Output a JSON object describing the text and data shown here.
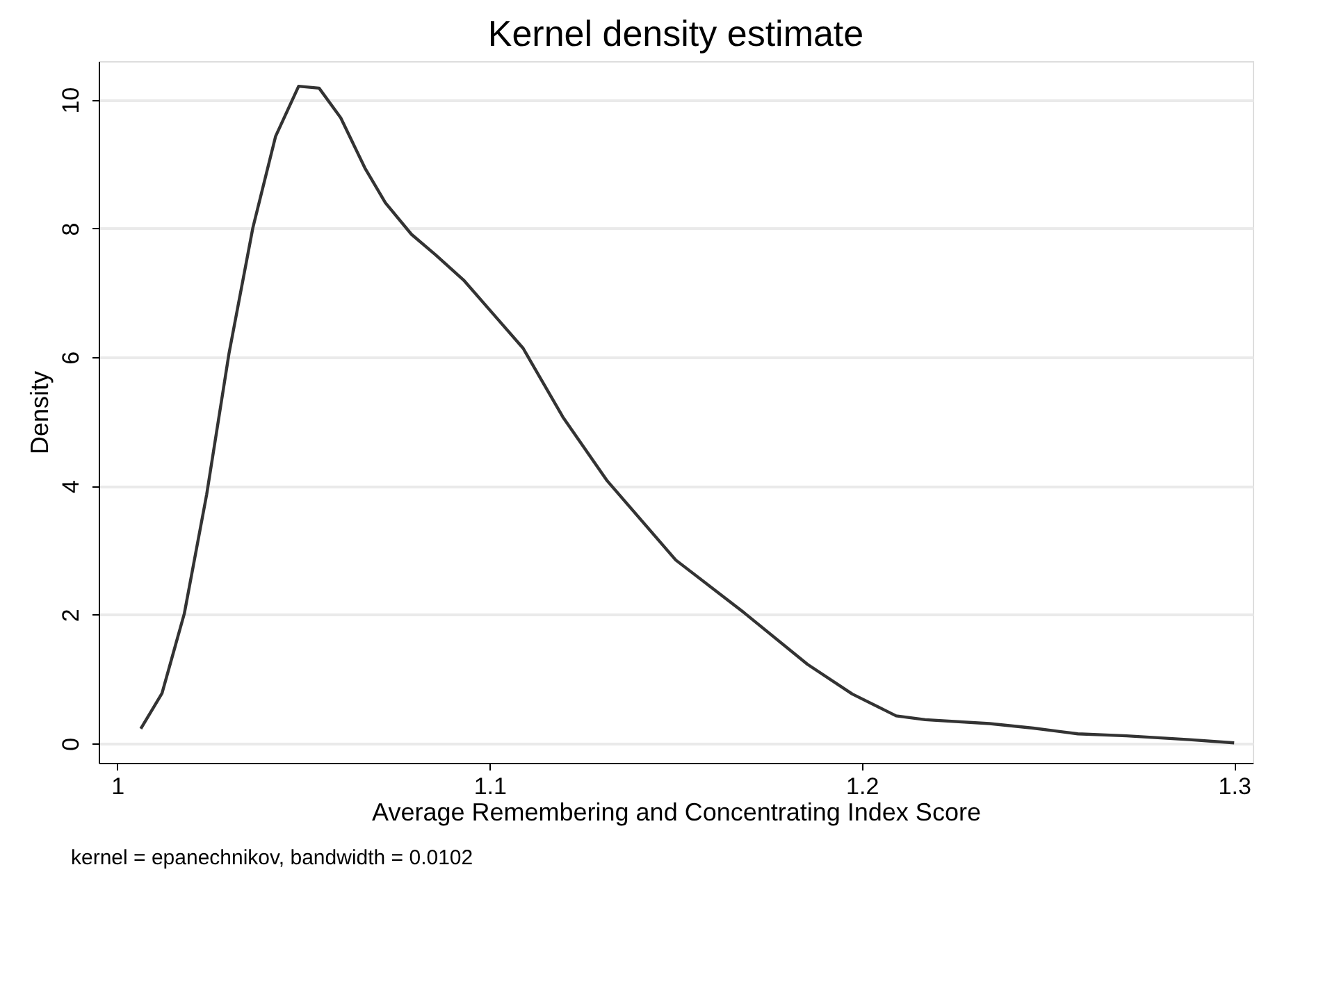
{
  "chart_data": {
    "type": "line",
    "title": "Kernel density estimate",
    "xlabel": "Average Remembering and Concentrating Index Score",
    "ylabel": "Density",
    "annotations": [
      "kernel = epanechnikov, bandwidth = 0.0102"
    ],
    "xlim": [
      0.995,
      1.305
    ],
    "xticks": [
      {
        "value": 1,
        "label": "1"
      },
      1.1,
      1.2,
      1.3
    ],
    "ylim": [
      -0.3,
      10.6
    ],
    "yticks": [
      0,
      2,
      4,
      6,
      8,
      10
    ],
    "grid": "y",
    "marker": "none",
    "line_style": "solid",
    "series": [
      {
        "color": "#333333",
        "x": [
          1.0063,
          1.012,
          1.018,
          1.024,
          1.03,
          1.0364,
          1.0425,
          1.0487,
          1.0542,
          1.06,
          1.0665,
          1.072,
          1.079,
          1.0855,
          1.093,
          1.101,
          1.109,
          1.1197,
          1.1316,
          1.15,
          1.1684,
          1.1854,
          1.1974,
          1.2092,
          1.217,
          1.2343,
          1.246,
          1.258,
          1.2711,
          1.288,
          1.3
        ],
        "values": [
          0.23,
          0.78,
          2.02,
          3.87,
          6.06,
          8.01,
          9.43,
          10.21,
          10.18,
          9.72,
          8.94,
          8.4,
          7.91,
          7.59,
          7.2,
          6.67,
          6.14,
          5.07,
          4.08,
          2.85,
          2.03,
          1.23,
          0.77,
          0.43,
          0.37,
          0.31,
          0.24,
          0.15,
          0.12,
          0.06,
          0.01
        ]
      }
    ]
  }
}
